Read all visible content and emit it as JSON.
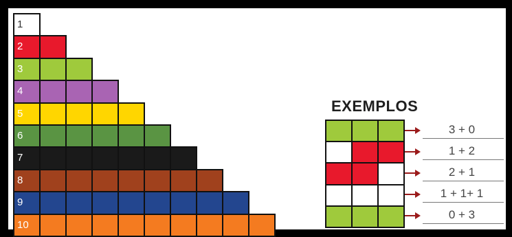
{
  "colors": {
    "white": "#ffffff",
    "red": "#e8192c",
    "lightgreen": "#9fca3c",
    "purple": "#a964b3",
    "yellow": "#ffd600",
    "darkgreen": "#5a9443",
    "black": "#1a1a1a",
    "brown": "#a0411d",
    "blue": "#23468f",
    "orange": "#f47b20",
    "arrow": "#9b1b1b"
  },
  "staircase": {
    "rows": [
      {
        "label": "1",
        "count": 1,
        "color": "white"
      },
      {
        "label": "2",
        "count": 2,
        "color": "red"
      },
      {
        "label": "3",
        "count": 3,
        "color": "lightgreen"
      },
      {
        "label": "4",
        "count": 4,
        "color": "purple"
      },
      {
        "label": "5",
        "count": 5,
        "color": "yellow"
      },
      {
        "label": "6",
        "count": 6,
        "color": "darkgreen"
      },
      {
        "label": "7",
        "count": 7,
        "color": "black"
      },
      {
        "label": "8",
        "count": 8,
        "color": "brown"
      },
      {
        "label": "9",
        "count": 9,
        "color": "blue"
      },
      {
        "label": "10",
        "count": 10,
        "color": "orange"
      }
    ]
  },
  "examples": {
    "title": "EXEMPLOS",
    "rows": [
      {
        "cells": [
          "lightgreen",
          "lightgreen",
          "lightgreen"
        ],
        "label": "3 + 0"
      },
      {
        "cells": [
          "white",
          "red",
          "red"
        ],
        "label": "1 + 2"
      },
      {
        "cells": [
          "red",
          "red",
          "white"
        ],
        "label": "2 + 1"
      },
      {
        "cells": [
          "white",
          "white",
          "white"
        ],
        "label": "1 + 1+ 1"
      },
      {
        "cells": [
          "lightgreen",
          "lightgreen",
          "lightgreen"
        ],
        "label": "0 + 3"
      }
    ]
  }
}
